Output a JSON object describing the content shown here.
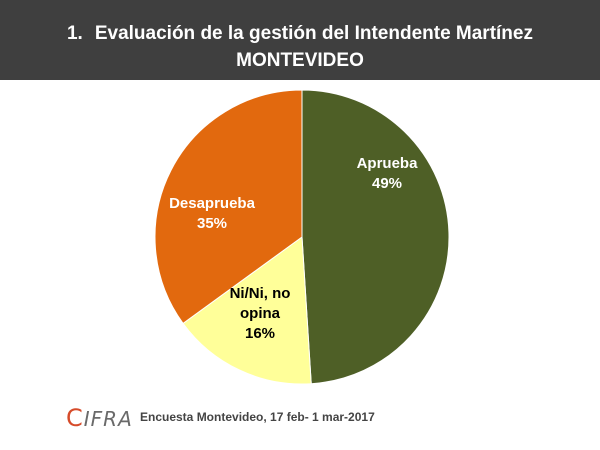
{
  "header": {
    "number": "1.",
    "title": "Evaluación de la gestión del Intendente Martínez",
    "subtitle": "MONTEVIDEO"
  },
  "chart_data": {
    "type": "pie",
    "slices": [
      {
        "label_lines": [
          "Aprueba"
        ],
        "value": 49,
        "value_label": "49%",
        "color": "#4e5f26"
      },
      {
        "label_lines": [
          "Ni/Ni, no",
          "opina"
        ],
        "value": 16,
        "value_label": "16%",
        "color": "#ffff99"
      },
      {
        "label_lines": [
          "Desaprueba"
        ],
        "value": 35,
        "value_label": "35%",
        "color": "#e2690e"
      }
    ],
    "start": "12 o'clock",
    "direction": "clockwise"
  },
  "footer": {
    "logo": "CIFRA",
    "source": "Encuesta Montevideo,  17 feb- 1 mar-2017"
  }
}
